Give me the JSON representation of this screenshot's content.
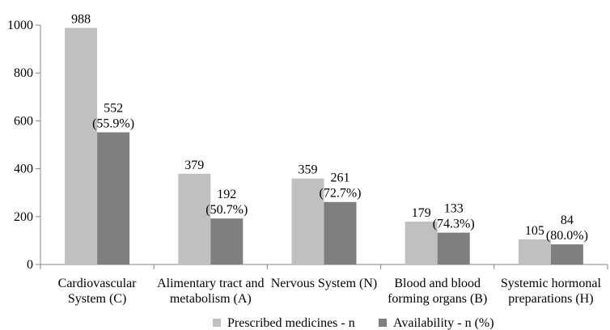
{
  "chart_data": {
    "type": "bar",
    "title": "",
    "xlabel": "",
    "ylabel": "",
    "ylim": [
      0,
      1000
    ],
    "yticks": [
      0,
      200,
      400,
      600,
      800,
      1000
    ],
    "grid": false,
    "legend_position": "bottom",
    "categories": [
      [
        "Cardiovascular",
        "System (C)"
      ],
      [
        "Alimentary tract and",
        "metabolism (A)"
      ],
      [
        "Nervous System (N)"
      ],
      [
        "Blood and blood",
        "forming organs (B)"
      ],
      [
        "Systemic hormonal",
        "preparations (H)"
      ]
    ],
    "series": [
      {
        "name": "Prescribed medicines - n",
        "color": "#c0c0c0",
        "values": [
          988,
          379,
          359,
          179,
          105
        ],
        "labels": [
          [
            "988"
          ],
          [
            "379"
          ],
          [
            "359"
          ],
          [
            "179"
          ],
          [
            "105"
          ]
        ]
      },
      {
        "name": "Availability - n (%)",
        "color": "#7f7f7f",
        "values": [
          552,
          192,
          261,
          133,
          84
        ],
        "labels": [
          [
            "552",
            "(55.9%)"
          ],
          [
            "192",
            "(50.7%)"
          ],
          [
            "261",
            "(72.7%)"
          ],
          [
            "133",
            "(74.3%)"
          ],
          [
            "84",
            "(80.0%)"
          ]
        ]
      }
    ]
  }
}
